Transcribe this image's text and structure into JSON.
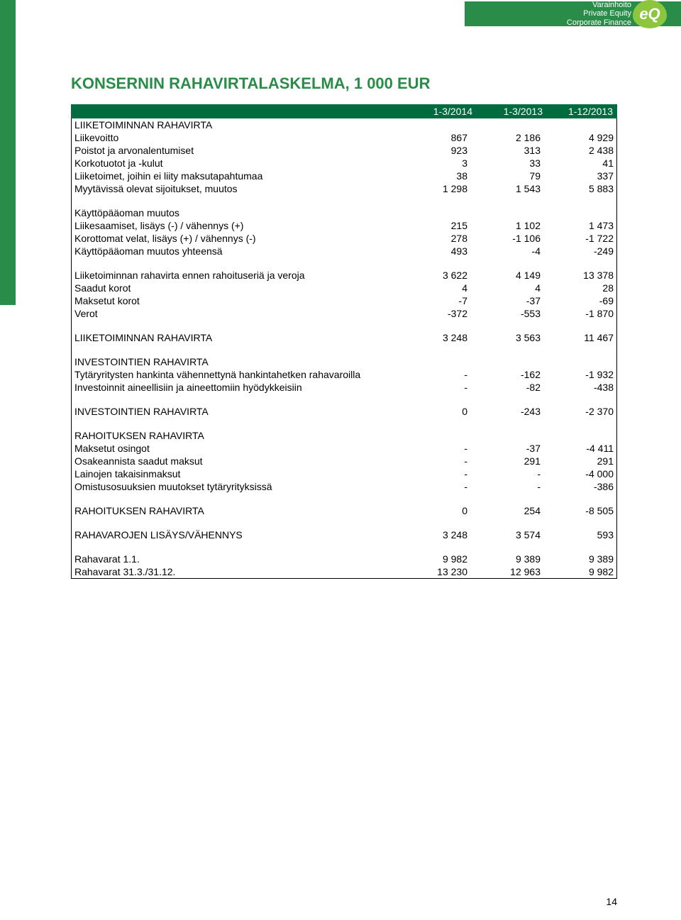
{
  "brand": {
    "lines": [
      "Varainhoito",
      "Private Equity",
      "Corporate Finance"
    ],
    "logo_text": "eQ",
    "green_dark": "#2a8c49",
    "green_light": "#8cc63f",
    "header_band_color": "#006B3F"
  },
  "title": "KONSERNIN RAHAVIRTALASKELMA, 1 000 EUR",
  "columns": [
    "1-3/2014",
    "1-3/2013",
    "1-12/2013"
  ],
  "page_number": "14",
  "rows": [
    {
      "type": "section",
      "label": "LIIKETOIMINNAN RAHAVIRTA"
    },
    {
      "label": "Liikevoitto",
      "v": [
        "867",
        "2 186",
        "4 929"
      ]
    },
    {
      "label": "Poistot ja arvonalentumiset",
      "v": [
        "923",
        "313",
        "2 438"
      ]
    },
    {
      "label": "Korkotuotot ja -kulut",
      "v": [
        "3",
        "33",
        "41"
      ]
    },
    {
      "label": "Liiketoimet, joihin ei liity maksutapahtumaa",
      "v": [
        "38",
        "79",
        "337"
      ]
    },
    {
      "label": "Myytävissä olevat sijoitukset, muutos",
      "v": [
        "1 298",
        "1 543",
        "5 883"
      ]
    },
    {
      "type": "spacer"
    },
    {
      "label": "Käyttöpääoman muutos",
      "v": [
        "",
        "",
        ""
      ]
    },
    {
      "label": "Liikesaamiset, lisäys (-) / vähennys (+)",
      "v": [
        "215",
        "1 102",
        "1 473"
      ]
    },
    {
      "label": "Korottomat velat, lisäys (+) / vähennys (-)",
      "v": [
        "278",
        "-1 106",
        "-1 722"
      ]
    },
    {
      "label": "Käyttöpääoman muutos yhteensä",
      "v": [
        "493",
        "-4",
        "-249"
      ]
    },
    {
      "type": "spacer"
    },
    {
      "label": "Liiketoiminnan rahavirta ennen rahoituseriä ja veroja",
      "v": [
        "3 622",
        "4 149",
        "13 378"
      ]
    },
    {
      "label": "Saadut korot",
      "v": [
        "4",
        "4",
        "28"
      ]
    },
    {
      "label": "Maksetut korot",
      "v": [
        "-7",
        "-37",
        "-69"
      ]
    },
    {
      "label": "Verot",
      "v": [
        "-372",
        "-553",
        "-1 870"
      ]
    },
    {
      "type": "spacer"
    },
    {
      "label": "LIIKETOIMINNAN RAHAVIRTA",
      "v": [
        "3 248",
        "3 563",
        "11 467"
      ]
    },
    {
      "type": "spacer"
    },
    {
      "type": "section",
      "label": "INVESTOINTIEN RAHAVIRTA"
    },
    {
      "label": "Tytäryritysten hankinta vähennettynä hankintahetken rahavaroilla",
      "v": [
        "-",
        "-162",
        "-1 932"
      ]
    },
    {
      "label": "Investoinnit aineellisiin ja aineettomiin hyödykkeisiin",
      "v": [
        "-",
        "-82",
        "-438"
      ]
    },
    {
      "type": "spacer"
    },
    {
      "label": "INVESTOINTIEN RAHAVIRTA",
      "v": [
        "0",
        "-243",
        "-2 370"
      ]
    },
    {
      "type": "spacer"
    },
    {
      "type": "section",
      "label": "RAHOITUKSEN RAHAVIRTA"
    },
    {
      "label": "Maksetut osingot",
      "v": [
        "-",
        "-37",
        "-4 411"
      ]
    },
    {
      "label": "Osakeannista saadut maksut",
      "v": [
        "-",
        "291",
        "291"
      ]
    },
    {
      "label": "Lainojen takaisinmaksut",
      "v": [
        "-",
        "-",
        "-4 000"
      ]
    },
    {
      "label": "Omistusosuuksien muutokset tytäryrityksissä",
      "v": [
        "-",
        "-",
        "-386"
      ]
    },
    {
      "type": "spacer"
    },
    {
      "label": "RAHOITUKSEN RAHAVIRTA",
      "v": [
        "0",
        "254",
        "-8 505"
      ]
    },
    {
      "type": "spacer"
    },
    {
      "label": "RAHAVAROJEN LISÄYS/VÄHENNYS",
      "v": [
        "3 248",
        "3 574",
        "593"
      ]
    },
    {
      "type": "spacer"
    },
    {
      "label": "Rahavarat 1.1.",
      "v": [
        "9 982",
        "9 389",
        "9 389"
      ]
    },
    {
      "label": "Rahavarat 31.3./31.12.",
      "v": [
        "13 230",
        "12 963",
        "9 982"
      ]
    }
  ]
}
